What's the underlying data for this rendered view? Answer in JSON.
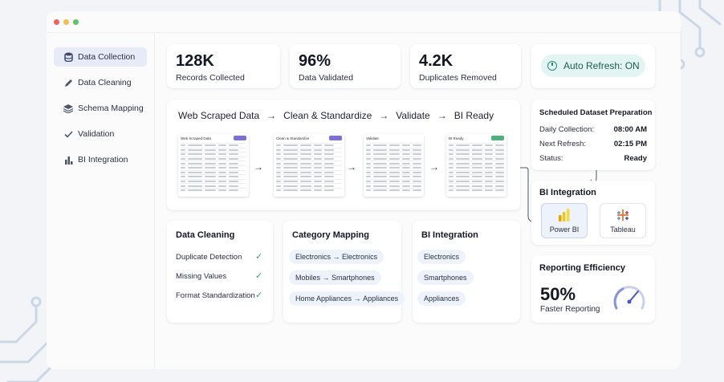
{
  "window": {
    "dot_colors": [
      "#f0625b",
      "#f3be4f",
      "#5fc464"
    ]
  },
  "sidebar": {
    "items": [
      {
        "label": "Data Collection",
        "icon": "database-icon",
        "active": true
      },
      {
        "label": "Data Cleaning",
        "icon": "pen-icon",
        "active": false
      },
      {
        "label": "Schema Mapping",
        "icon": "layers-icon",
        "active": false
      },
      {
        "label": "Validation",
        "icon": "check-icon",
        "active": false
      },
      {
        "label": "BI Integration",
        "icon": "bar-chart-icon",
        "active": false
      }
    ]
  },
  "stats": [
    {
      "value": "128K",
      "label": "Records Collected"
    },
    {
      "value": "96%",
      "label": "Data Validated"
    },
    {
      "value": "4.2K",
      "label": "Duplicates Removed"
    }
  ],
  "auto_refresh": {
    "label": "Auto Refresh: ON"
  },
  "pipeline": {
    "steps": [
      "Web Scraped Data",
      "Clean & Standardize",
      "Validate",
      "BI Ready"
    ],
    "arrow": "→",
    "thumbnails": [
      {
        "title": "Web Scraped Data",
        "badge_color": "#7b6fd8"
      },
      {
        "title": "Clean & Standardize",
        "badge_color": "#7b6fd8"
      },
      {
        "title": "Validate",
        "badge_color": ""
      },
      {
        "title": "BI Ready",
        "badge_color": "#4cb27a"
      }
    ]
  },
  "schedule": {
    "title": "Scheduled Dataset Preparation",
    "rows": [
      {
        "label": "Daily Collection:",
        "value": "08:00 AM"
      },
      {
        "label": "Next Refresh:",
        "value": "02:15 PM"
      },
      {
        "label": "Status:",
        "value": "Ready"
      }
    ]
  },
  "bi_tools": {
    "title": "BI Integration",
    "tools": [
      {
        "label": "Power BI",
        "icon": "power-bi-icon"
      },
      {
        "label": "Tableau",
        "icon": "tableau-icon"
      }
    ]
  },
  "data_cleaning": {
    "title": "Data Cleaning",
    "items": [
      "Duplicate Detection",
      "Missing Values",
      "Format Standardization"
    ],
    "check": "✓"
  },
  "category_mapping": {
    "title": "Category Mapping",
    "rows": [
      {
        "from": "Electronics",
        "to": "Electronics"
      },
      {
        "from": "Mobiles",
        "to": "Smartphones"
      },
      {
        "from": "Home Appliances",
        "to": "Appliances"
      }
    ],
    "arrow": "→"
  },
  "bi_categories": {
    "title": "BI Integration",
    "items": [
      "Electronics",
      "Smartphones",
      "Appliances"
    ]
  },
  "efficiency": {
    "title": "Reporting Efficiency",
    "value": "50%",
    "label": "Faster Reporting"
  }
}
